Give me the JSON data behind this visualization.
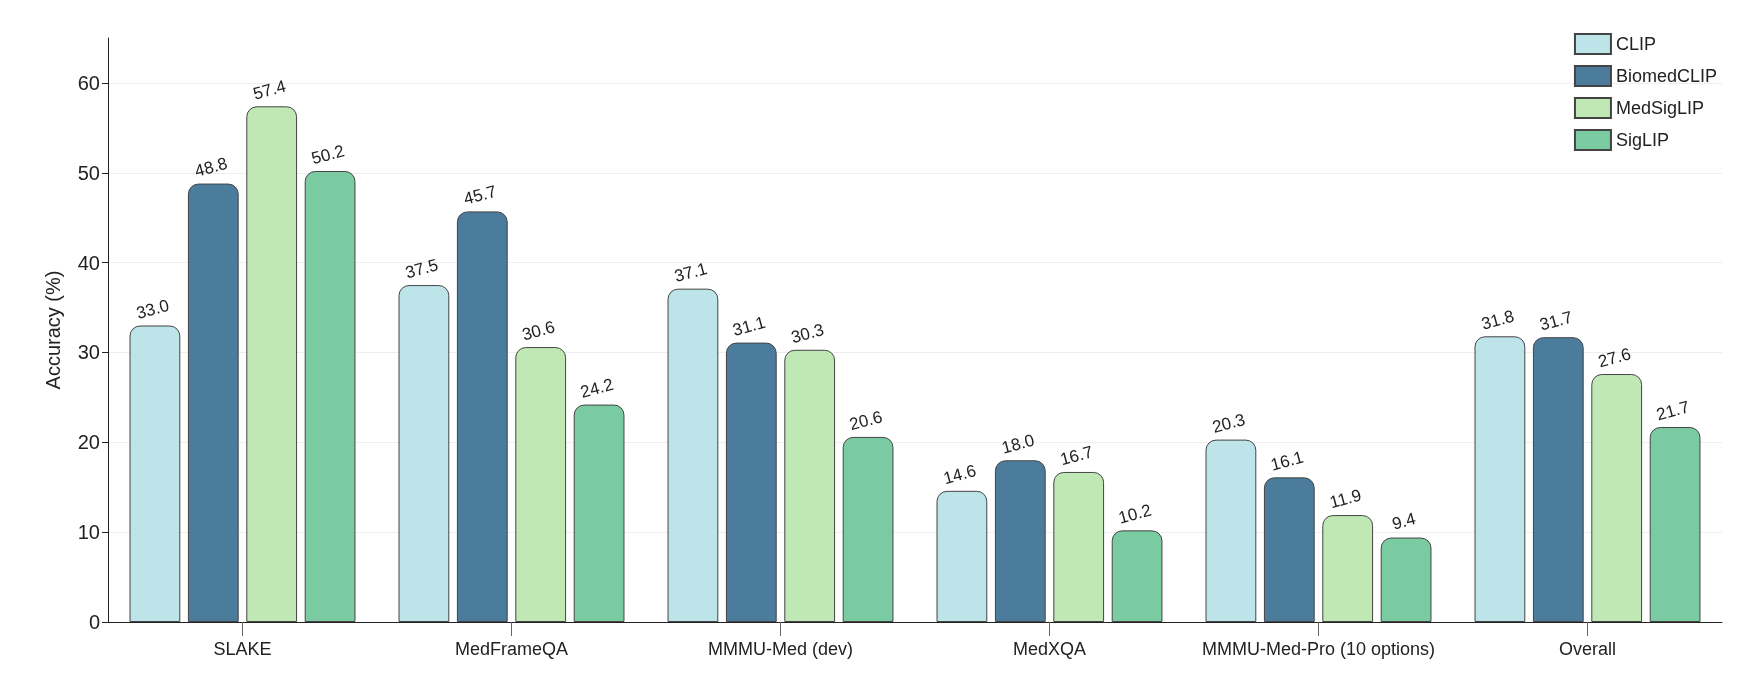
{
  "chart_data": {
    "type": "bar",
    "ylabel": "Accuracy (%)",
    "categories": [
      "SLAKE",
      "MedFrameQA",
      "MMMU-Med (dev)",
      "MedXQA",
      "MMMU-Med-Pro (10 options)",
      "Overall"
    ],
    "series": [
      {
        "name": "CLIP",
        "color": "#bde4e9",
        "values": [
          33.0,
          37.5,
          37.1,
          14.6,
          20.3,
          31.8
        ],
        "value_labels": [
          "33.0",
          "37.5",
          "37.1",
          "14.6",
          "20.3",
          "31.8"
        ]
      },
      {
        "name": "BiomedCLIP",
        "color": "#4b7c9c",
        "values": [
          48.8,
          45.7,
          31.1,
          18.0,
          16.1,
          31.7
        ],
        "value_labels": [
          "48.8",
          "45.7",
          "31.1",
          "18.0",
          "16.1",
          "31.7"
        ]
      },
      {
        "name": "MedSigLIP",
        "color": "#bfe8b4",
        "values": [
          57.4,
          30.6,
          30.3,
          16.7,
          11.9,
          27.6
        ],
        "value_labels": [
          "57.4",
          "30.6",
          "30.3",
          "16.7",
          "11.9",
          "27.6"
        ]
      },
      {
        "name": "SigLIP",
        "color": "#7acaa2",
        "values": [
          50.2,
          24.2,
          20.6,
          10.2,
          9.4,
          21.7
        ],
        "value_labels": [
          "50.2",
          "24.2",
          "20.6",
          "10.2",
          "9.4",
          "21.7"
        ]
      }
    ],
    "ylim": [
      0,
      65
    ],
    "yticks": [
      0,
      10,
      20,
      30,
      40,
      50,
      60
    ],
    "grid": "y",
    "legend": "top right"
  }
}
